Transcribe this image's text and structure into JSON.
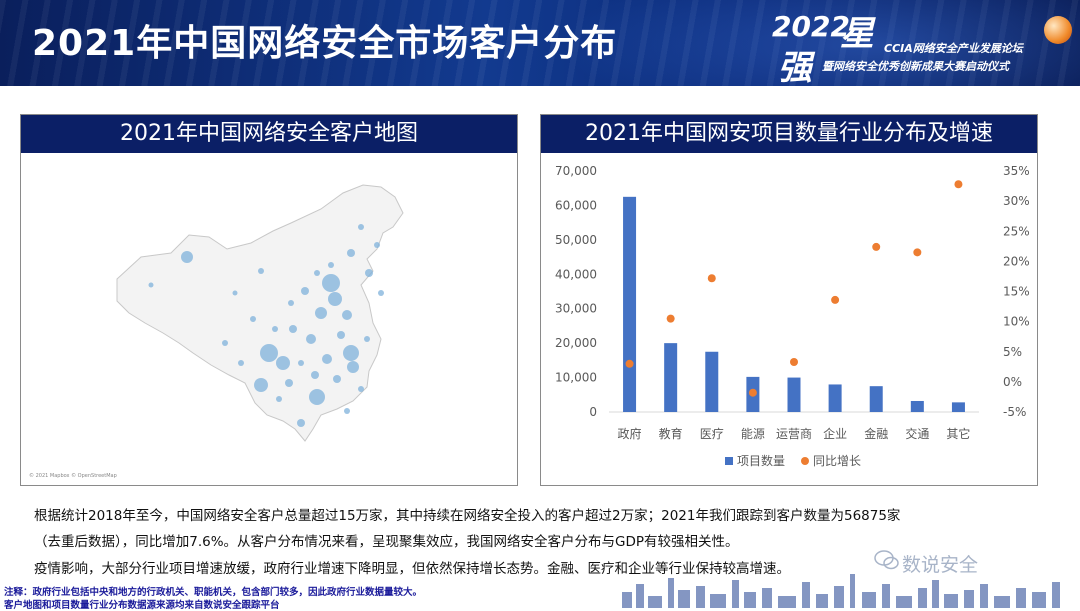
{
  "header": {
    "title": "2021年中国网络安全市场客户分布",
    "logo_year": "2022",
    "logo_star": "星",
    "logo_strong": "强",
    "logo_line1": "CCIA网络安全产业发展论坛",
    "logo_line2": "暨网络安全优秀创新成果大赛启动仪式"
  },
  "map_panel": {
    "title": "2021年中国网络安全客户地图",
    "credit": "© 2021 Mapbox © OpenStreetMap"
  },
  "chart_panel": {
    "title": "2021年中国网安项目数量行业分布及增速"
  },
  "chart_data": {
    "type": "bar",
    "categories": [
      "政府",
      "教育",
      "医疗",
      "能源",
      "运营商",
      "企业",
      "金融",
      "交通",
      "其它"
    ],
    "series": [
      {
        "name": "项目数量",
        "type": "bar",
        "axis": "left",
        "color": "#4472c4",
        "values": [
          62500,
          20000,
          17500,
          10200,
          10000,
          8000,
          7500,
          3200,
          2800
        ]
      },
      {
        "name": "同比增长",
        "type": "scatter",
        "axis": "right",
        "color": "#ed7d31",
        "values": [
          0.03,
          0.105,
          0.172,
          -0.018,
          0.033,
          0.136,
          0.224,
          0.215,
          0.328
        ]
      }
    ],
    "left_ticks": [
      "70,000",
      "60,000",
      "50,000",
      "40,000",
      "30,000",
      "20,000",
      "10,000",
      "0"
    ],
    "right_ticks": [
      "35%",
      "30%",
      "25%",
      "20%",
      "15%",
      "10%",
      "5%",
      "0%",
      "-5%"
    ],
    "ylim_left": [
      0,
      70000
    ],
    "ylim_right": [
      -0.05,
      0.35
    ],
    "grid": false,
    "legend": "bottom"
  },
  "text": {
    "line1": "根据统计2018年至今，中国网络安全客户总量超过15万家，其中持续在网络安全投入的客户超过2万家；2021年我们跟踪到客户数量为56875家",
    "line2": "（去重后数据），同比增加7.6%。从客户分布情况来看，呈现聚集效应，我国网络安全客户分布与GDP有较强相关性。",
    "line3": "疫情影响，大部分行业项目增速放缓，政府行业增速下降明显，但依然保持增长态势。金融、医疗和企业等行业保持较高增速。",
    "note1": "注释：政府行业包括中央和地方的行政机关、职能机关，包含部门较多，因此政府行业数据量较大。",
    "note2": "客户地图和项目数量行业分布数据源来源均来自数说安全跟踪平台"
  },
  "watermark": "数说安全"
}
